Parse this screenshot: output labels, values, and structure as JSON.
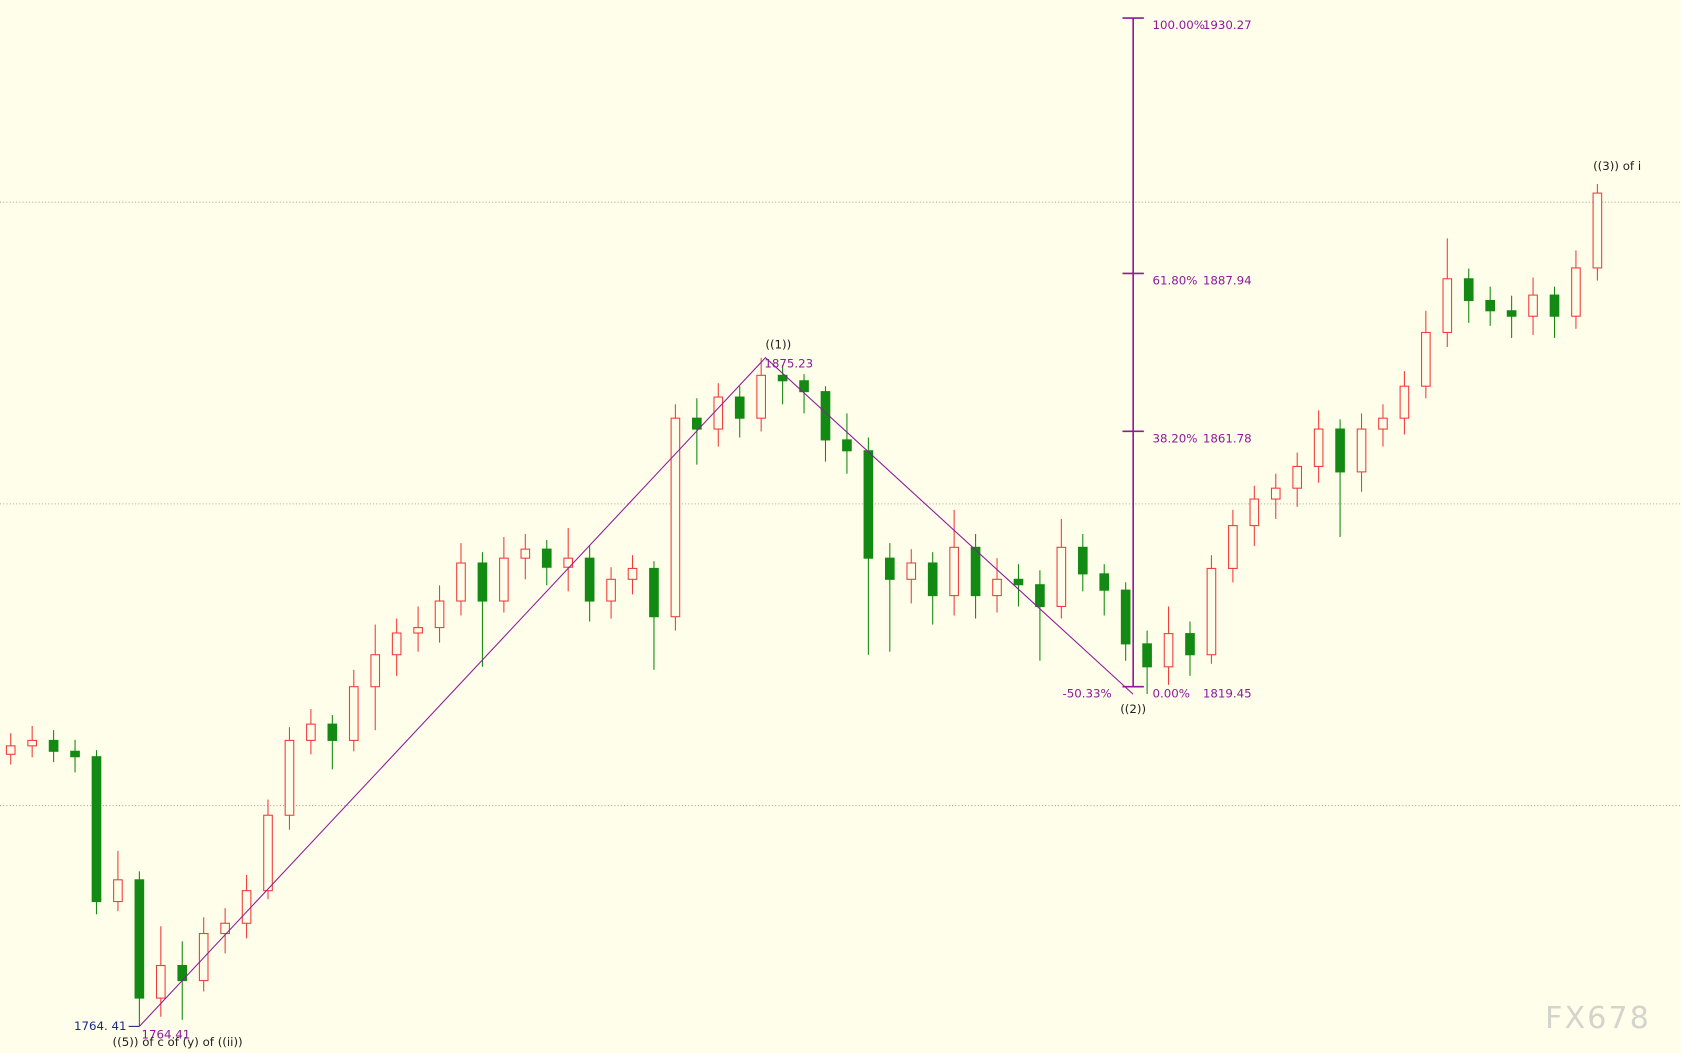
{
  "chart_data": {
    "type": "candlestick",
    "ylim": [
      1760,
      1934.5
    ],
    "xlim": [
      0,
      78.4
    ],
    "gridlines": [
      1801,
      1851,
      1901
    ],
    "background": "#fffeea",
    "up_color": "#f03c3c",
    "down_color": "#138a13",
    "fib_color": "#8e1a9a",
    "open": [
      1809.5,
      1810.9,
      1811.8,
      1810.0,
      1809.1,
      1785.1,
      1788.7,
      1769.1,
      1774.5,
      1772.0,
      1779.8,
      1781.5,
      1786.9,
      1799.4,
      1811.8,
      1814.5,
      1811.8,
      1820.7,
      1826.0,
      1829.6,
      1830.5,
      1834.9,
      1841.2,
      1834.9,
      1842.0,
      1843.5,
      1840.5,
      1842.0,
      1834.9,
      1838.5,
      1840.3,
      1832.3,
      1865.2,
      1863.4,
      1868.7,
      1865.2,
      1872.3,
      1871.4,
      1869.6,
      1861.6,
      1859.8,
      1842.0,
      1838.5,
      1841.2,
      1835.8,
      1843.8,
      1835.8,
      1838.5,
      1837.6,
      1834.0,
      1843.8,
      1839.4,
      1836.7,
      1827.8,
      1824.0,
      1829.5,
      1826.0,
      1840.3,
      1847.4,
      1851.8,
      1853.6,
      1857.2,
      1863.4,
      1856.3,
      1863.4,
      1865.2,
      1870.5,
      1879.4,
      1888.3,
      1884.7,
      1883.0,
      1882.1,
      1885.6,
      1882.1,
      1890.1
    ],
    "high": [
      1813.0,
      1814.2,
      1813.5,
      1811.9,
      1810.2,
      1793.5,
      1790.1,
      1781.0,
      1778.5,
      1782.5,
      1784.0,
      1789.5,
      1802.0,
      1814.0,
      1817.0,
      1816.0,
      1823.5,
      1831.0,
      1832.0,
      1834.0,
      1837.5,
      1844.5,
      1843.0,
      1845.5,
      1846.0,
      1845.0,
      1847.0,
      1844.0,
      1840.5,
      1842.5,
      1841.5,
      1867.5,
      1868.5,
      1871.0,
      1870.5,
      1875.2,
      1874.0,
      1872.5,
      1870.5,
      1866.0,
      1862.0,
      1844.5,
      1843.5,
      1843.0,
      1850.0,
      1846.0,
      1842.0,
      1841.0,
      1840.0,
      1848.5,
      1846.0,
      1841.0,
      1838.0,
      1830.0,
      1834.0,
      1831.5,
      1842.5,
      1850.0,
      1854.0,
      1856.0,
      1859.5,
      1866.5,
      1865.0,
      1866.0,
      1867.5,
      1873.0,
      1883.0,
      1895.0,
      1890.0,
      1887.0,
      1885.5,
      1888.5,
      1887.0,
      1893.0,
      1904.0
    ],
    "low": [
      1807.8,
      1809.0,
      1808.2,
      1806.5,
      1783.0,
      1783.5,
      1764.4,
      1766.0,
      1765.5,
      1770.2,
      1776.5,
      1779.0,
      1785.5,
      1797.0,
      1809.5,
      1807.0,
      1810.0,
      1813.5,
      1822.5,
      1826.5,
      1828.0,
      1832.5,
      1824.0,
      1833.0,
      1838.5,
      1837.5,
      1836.5,
      1831.5,
      1832.0,
      1836.0,
      1823.5,
      1830.0,
      1857.5,
      1860.5,
      1862.0,
      1863.0,
      1867.5,
      1866.0,
      1858.0,
      1856.0,
      1826.0,
      1826.5,
      1834.5,
      1831.0,
      1832.5,
      1832.0,
      1833.0,
      1834.0,
      1825.0,
      1832.0,
      1836.5,
      1832.5,
      1825.0,
      1819.5,
      1821.0,
      1822.5,
      1824.5,
      1838.0,
      1844.0,
      1848.5,
      1850.5,
      1854.5,
      1845.5,
      1853.0,
      1860.5,
      1862.5,
      1868.5,
      1877.0,
      1881.0,
      1880.5,
      1878.5,
      1879.0,
      1878.5,
      1880.0,
      1888.0
    ],
    "close": [
      1810.9,
      1811.8,
      1810.0,
      1809.1,
      1785.1,
      1788.7,
      1769.1,
      1774.5,
      1772.0,
      1779.8,
      1781.5,
      1786.9,
      1799.4,
      1811.8,
      1814.5,
      1811.8,
      1820.7,
      1826.0,
      1829.6,
      1830.5,
      1834.9,
      1841.2,
      1834.9,
      1842.0,
      1843.5,
      1840.5,
      1842.0,
      1834.9,
      1838.5,
      1840.3,
      1832.3,
      1865.2,
      1863.4,
      1868.7,
      1865.2,
      1872.3,
      1871.4,
      1869.6,
      1861.6,
      1859.8,
      1842.0,
      1838.5,
      1841.2,
      1835.8,
      1843.8,
      1835.8,
      1838.5,
      1837.6,
      1834.0,
      1843.8,
      1839.4,
      1836.7,
      1827.8,
      1824.0,
      1829.5,
      1826.0,
      1840.3,
      1847.4,
      1851.8,
      1853.6,
      1857.2,
      1863.4,
      1856.3,
      1863.4,
      1865.2,
      1870.5,
      1879.4,
      1888.3,
      1884.7,
      1883.0,
      1882.1,
      1885.6,
      1882.1,
      1890.1,
      1902.5
    ],
    "wave_line": {
      "x": [
        6.5,
        35.7,
        52.85
      ],
      "y": [
        1764.41,
        1875.23,
        1819.45
      ]
    },
    "fib_levels": [
      {
        "label": "100.00%",
        "value": 1930.27
      },
      {
        "label": "61.80%",
        "value": 1887.94
      },
      {
        "label": "38.20%",
        "value": 1861.78
      },
      {
        "label": "0.00%",
        "value": 1819.45
      }
    ],
    "fib_extension_label": "-50.33%",
    "wave_labels": [
      "((1))",
      "((2))",
      "((3)) of i",
      "((5)) of c of (y) of ((ii))"
    ],
    "low_price_label": "1764. 41",
    "watermark": "FX678"
  }
}
